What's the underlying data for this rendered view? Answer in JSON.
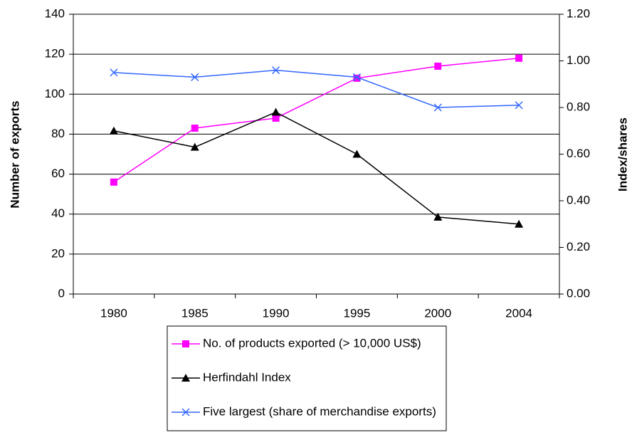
{
  "chart_data": {
    "type": "line",
    "categories": [
      "1980",
      "1985",
      "1990",
      "1995",
      "2000",
      "2004"
    ],
    "ylabel": "Number of exports",
    "y2label": "Index/shares",
    "ylim": [
      0,
      140
    ],
    "yticks": [
      0,
      20,
      40,
      60,
      80,
      100,
      120,
      140
    ],
    "y2lim": [
      0,
      1.2
    ],
    "y2ticks": [
      {
        "value": 0,
        "label": "0.00"
      },
      {
        "value": 0.2,
        "label": "0.20"
      },
      {
        "value": 0.4,
        "label": "0.40"
      },
      {
        "value": 0.6,
        "label": "0.60"
      },
      {
        "value": 0.8,
        "label": "0.80"
      },
      {
        "value": 1.0,
        "label": "1.00"
      },
      {
        "value": 1.2,
        "label": "1.20"
      }
    ],
    "grid": true,
    "legend": "bottom",
    "series": [
      {
        "name": "No. of products exported (> 10,000 US$)",
        "color": "#ff00ff",
        "marker": "square",
        "values": [
          56,
          83,
          88,
          108,
          114,
          118
        ]
      },
      {
        "name": "Herfindahl Index",
        "color": "#000000",
        "marker": "triangle",
        "axis": "y2",
        "values": [
          0.7,
          0.63,
          0.78,
          0.6,
          0.33,
          0.3
        ]
      },
      {
        "name": "Five largest (share of merchandise exports)",
        "color": "#3366ff",
        "marker": "x",
        "axis": "y2",
        "values": [
          0.95,
          0.93,
          0.96,
          0.93,
          0.8,
          0.81
        ]
      }
    ]
  }
}
